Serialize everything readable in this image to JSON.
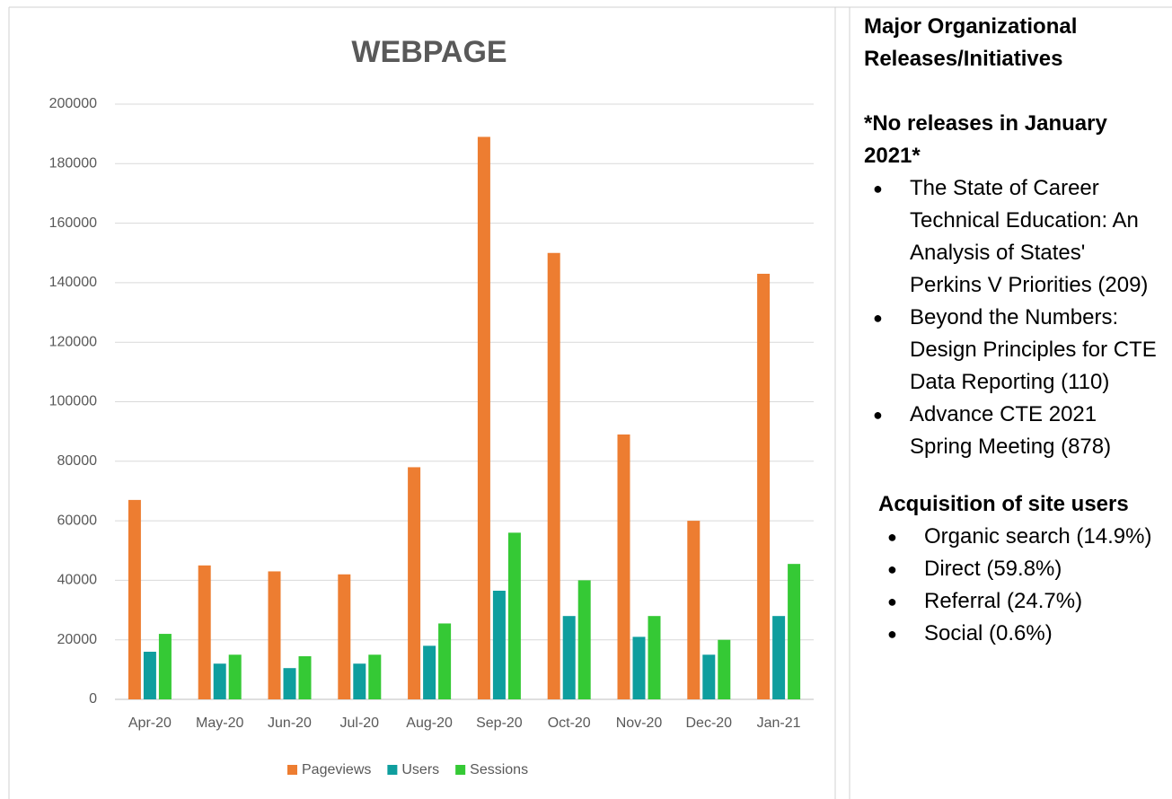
{
  "chart_data": {
    "type": "bar",
    "title": "WEBPAGE",
    "categories": [
      "Apr-20",
      "May-20",
      "Jun-20",
      "Jul-20",
      "Aug-20",
      "Sep-20",
      "Oct-20",
      "Nov-20",
      "Dec-20",
      "Jan-21"
    ],
    "series": [
      {
        "name": "Pageviews",
        "color": "#ed7d31",
        "values": [
          67000,
          45000,
          43000,
          42000,
          78000,
          189000,
          150000,
          89000,
          60000,
          143000
        ]
      },
      {
        "name": "Users",
        "color": "#0f9e9e",
        "values": [
          16000,
          12000,
          10500,
          12000,
          18000,
          36500,
          28000,
          21000,
          15000,
          28000
        ]
      },
      {
        "name": "Sessions",
        "color": "#35c935",
        "values": [
          22000,
          15000,
          14500,
          15000,
          25500,
          56000,
          40000,
          28000,
          20000,
          45500
        ]
      }
    ],
    "ylim": [
      0,
      200000
    ],
    "yticks": [
      0,
      20000,
      40000,
      60000,
      80000,
      100000,
      120000,
      140000,
      160000,
      180000,
      200000
    ],
    "grid": true,
    "legend": "bottom"
  },
  "panel": {
    "heading": "Major Organizational Releases/Initiatives",
    "note": "*No releases in January 2021*",
    "releases": [
      "The State of Career Technical Education: An Analysis of States' Perkins V Priorities (209)",
      "Beyond the Numbers: Design Principles for CTE Data Reporting (110)",
      "Advance CTE 2021 Spring Meeting (878)"
    ],
    "acquisition_heading": "Acquisition of site users",
    "acquisition": [
      "Organic search (14.9%)",
      "Direct (59.8%)",
      "Referral (24.7%)",
      "Social (0.6%)"
    ]
  }
}
